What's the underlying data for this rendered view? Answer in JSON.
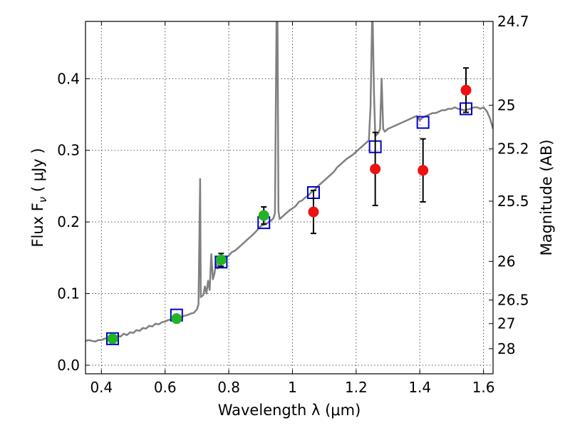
{
  "chart_data": {
    "type": "scatter",
    "xlabel": "Wavelength  λ (μm)",
    "ylabel": "Flux  F",
    "ylabel_sub": "ν",
    "ylabel_unit": "  ( μJy )",
    "right_ylabel": "Magnitude (AB)",
    "xlim": [
      0.35,
      1.63
    ],
    "ylim": [
      -0.012,
      0.48
    ],
    "grid": true,
    "x_ticks": [
      0.4,
      0.6,
      0.8,
      1.0,
      1.2,
      1.4,
      1.6
    ],
    "x_tick_labels": [
      "0.4",
      "0.6",
      "0.8",
      "1",
      "1.2",
      "1.4",
      "1.6"
    ],
    "y_ticks": [
      0.0,
      0.1,
      0.2,
      0.3,
      0.4
    ],
    "y_tick_labels": [
      "0.0",
      "0.1",
      "0.2",
      "0.3",
      "0.4"
    ],
    "right_ticks": [
      {
        "label": "24.7",
        "flux": 0.48
      },
      {
        "label": "25",
        "flux": 0.363
      },
      {
        "label": "25.2",
        "flux": 0.302
      },
      {
        "label": "25.5",
        "flux": 0.229
      },
      {
        "label": "26",
        "flux": 0.145
      },
      {
        "label": "26.5",
        "flux": 0.091
      },
      {
        "label": "27",
        "flux": 0.058
      },
      {
        "label": "28",
        "flux": 0.023
      }
    ],
    "series": [
      {
        "kind": "line",
        "color": "#808080",
        "points": [
          [
            0.35,
            0.034
          ],
          [
            0.36,
            0.035
          ],
          [
            0.37,
            0.034
          ],
          [
            0.38,
            0.033
          ],
          [
            0.39,
            0.035
          ],
          [
            0.4,
            0.035
          ],
          [
            0.41,
            0.037
          ],
          [
            0.42,
            0.038
          ],
          [
            0.43,
            0.037
          ],
          [
            0.44,
            0.039
          ],
          [
            0.45,
            0.041
          ],
          [
            0.46,
            0.04
          ],
          [
            0.47,
            0.044
          ],
          [
            0.48,
            0.042
          ],
          [
            0.49,
            0.046
          ],
          [
            0.5,
            0.045
          ],
          [
            0.51,
            0.049
          ],
          [
            0.52,
            0.048
          ],
          [
            0.53,
            0.052
          ],
          [
            0.54,
            0.051
          ],
          [
            0.55,
            0.055
          ],
          [
            0.56,
            0.054
          ],
          [
            0.57,
            0.058
          ],
          [
            0.58,
            0.057
          ],
          [
            0.59,
            0.06
          ],
          [
            0.6,
            0.061
          ],
          [
            0.61,
            0.063
          ],
          [
            0.62,
            0.064
          ],
          [
            0.63,
            0.066
          ],
          [
            0.64,
            0.068
          ],
          [
            0.65,
            0.067
          ],
          [
            0.66,
            0.069
          ],
          [
            0.67,
            0.07
          ],
          [
            0.68,
            0.072
          ],
          [
            0.69,
            0.073
          ],
          [
            0.7,
            0.078
          ],
          [
            0.705,
            0.085
          ],
          [
            0.71,
            0.26
          ],
          [
            0.712,
            0.095
          ],
          [
            0.72,
            0.098
          ],
          [
            0.725,
            0.11
          ],
          [
            0.73,
            0.1
          ],
          [
            0.735,
            0.118
          ],
          [
            0.74,
            0.105
          ],
          [
            0.745,
            0.155
          ],
          [
            0.75,
            0.12
          ],
          [
            0.755,
            0.128
          ],
          [
            0.76,
            0.142
          ],
          [
            0.765,
            0.135
          ],
          [
            0.77,
            0.145
          ],
          [
            0.78,
            0.148
          ],
          [
            0.79,
            0.15
          ],
          [
            0.8,
            0.153
          ],
          [
            0.81,
            0.158
          ],
          [
            0.82,
            0.16
          ],
          [
            0.83,
            0.164
          ],
          [
            0.84,
            0.168
          ],
          [
            0.85,
            0.172
          ],
          [
            0.86,
            0.176
          ],
          [
            0.87,
            0.18
          ],
          [
            0.88,
            0.184
          ],
          [
            0.89,
            0.189
          ],
          [
            0.9,
            0.194
          ],
          [
            0.91,
            0.196
          ],
          [
            0.92,
            0.198
          ],
          [
            0.93,
            0.201
          ],
          [
            0.94,
            0.205
          ],
          [
            0.945,
            0.212
          ],
          [
            0.95,
            0.48
          ],
          [
            0.953,
            0.48
          ],
          [
            0.956,
            0.215
          ],
          [
            0.96,
            0.204
          ],
          [
            0.97,
            0.208
          ],
          [
            0.98,
            0.212
          ],
          [
            0.99,
            0.216
          ],
          [
            1.0,
            0.219
          ],
          [
            1.01,
            0.222
          ],
          [
            1.02,
            0.228
          ],
          [
            1.03,
            0.23
          ],
          [
            1.04,
            0.234
          ],
          [
            1.05,
            0.237
          ],
          [
            1.06,
            0.242
          ],
          [
            1.07,
            0.245
          ],
          [
            1.08,
            0.25
          ],
          [
            1.09,
            0.254
          ],
          [
            1.1,
            0.258
          ],
          [
            1.11,
            0.262
          ],
          [
            1.12,
            0.266
          ],
          [
            1.13,
            0.27
          ],
          [
            1.14,
            0.276
          ],
          [
            1.15,
            0.28
          ],
          [
            1.16,
            0.284
          ],
          [
            1.17,
            0.288
          ],
          [
            1.18,
            0.291
          ],
          [
            1.19,
            0.294
          ],
          [
            1.2,
            0.298
          ],
          [
            1.21,
            0.302
          ],
          [
            1.22,
            0.306
          ],
          [
            1.23,
            0.31
          ],
          [
            1.24,
            0.314
          ],
          [
            1.245,
            0.36
          ],
          [
            1.25,
            0.48
          ],
          [
            1.252,
            0.48
          ],
          [
            1.256,
            0.38
          ],
          [
            1.26,
            0.32
          ],
          [
            1.27,
            0.324
          ],
          [
            1.275,
            0.33
          ],
          [
            1.28,
            0.4
          ],
          [
            1.285,
            0.33
          ],
          [
            1.29,
            0.326
          ],
          [
            1.3,
            0.33
          ],
          [
            1.31,
            0.332
          ],
          [
            1.32,
            0.334
          ],
          [
            1.33,
            0.336
          ],
          [
            1.34,
            0.338
          ],
          [
            1.35,
            0.34
          ],
          [
            1.36,
            0.342
          ],
          [
            1.37,
            0.344
          ],
          [
            1.38,
            0.346
          ],
          [
            1.39,
            0.348
          ],
          [
            1.4,
            0.342
          ],
          [
            1.41,
            0.346
          ],
          [
            1.42,
            0.348
          ],
          [
            1.43,
            0.35
          ],
          [
            1.44,
            0.352
          ],
          [
            1.45,
            0.352
          ],
          [
            1.46,
            0.354
          ],
          [
            1.47,
            0.356
          ],
          [
            1.48,
            0.356
          ],
          [
            1.49,
            0.358
          ],
          [
            1.5,
            0.358
          ],
          [
            1.51,
            0.36
          ],
          [
            1.52,
            0.358
          ],
          [
            1.53,
            0.357
          ],
          [
            1.54,
            0.356
          ],
          [
            1.55,
            0.357
          ],
          [
            1.56,
            0.358
          ],
          [
            1.57,
            0.36
          ],
          [
            1.58,
            0.36
          ],
          [
            1.59,
            0.358
          ],
          [
            1.6,
            0.36
          ],
          [
            1.61,
            0.355
          ],
          [
            1.62,
            0.345
          ],
          [
            1.63,
            0.33
          ]
        ]
      },
      {
        "kind": "open_square",
        "color": "#0000cc",
        "points": [
          [
            0.435,
            0.037
          ],
          [
            0.636,
            0.07
          ],
          [
            0.776,
            0.144
          ],
          [
            0.91,
            0.199
          ],
          [
            1.066,
            0.241
          ],
          [
            1.26,
            0.305
          ],
          [
            1.41,
            0.339
          ],
          [
            1.545,
            0.358
          ]
        ]
      },
      {
        "kind": "filled_circle",
        "color": "#22b422",
        "points": [
          {
            "x": 0.435,
            "y": 0.037
          },
          {
            "x": 0.636,
            "y": 0.065
          },
          {
            "x": 0.776,
            "y": 0.147,
            "err": 0.009
          },
          {
            "x": 0.91,
            "y": 0.209,
            "err": 0.012
          }
        ]
      },
      {
        "kind": "filled_circle",
        "color": "#ee1111",
        "points": [
          {
            "x": 1.066,
            "y": 0.214,
            "err": 0.03
          },
          {
            "x": 1.26,
            "y": 0.274,
            "err": 0.051
          },
          {
            "x": 1.41,
            "y": 0.272,
            "err": 0.044
          },
          {
            "x": 1.545,
            "y": 0.384,
            "err": 0.031
          }
        ]
      }
    ]
  }
}
